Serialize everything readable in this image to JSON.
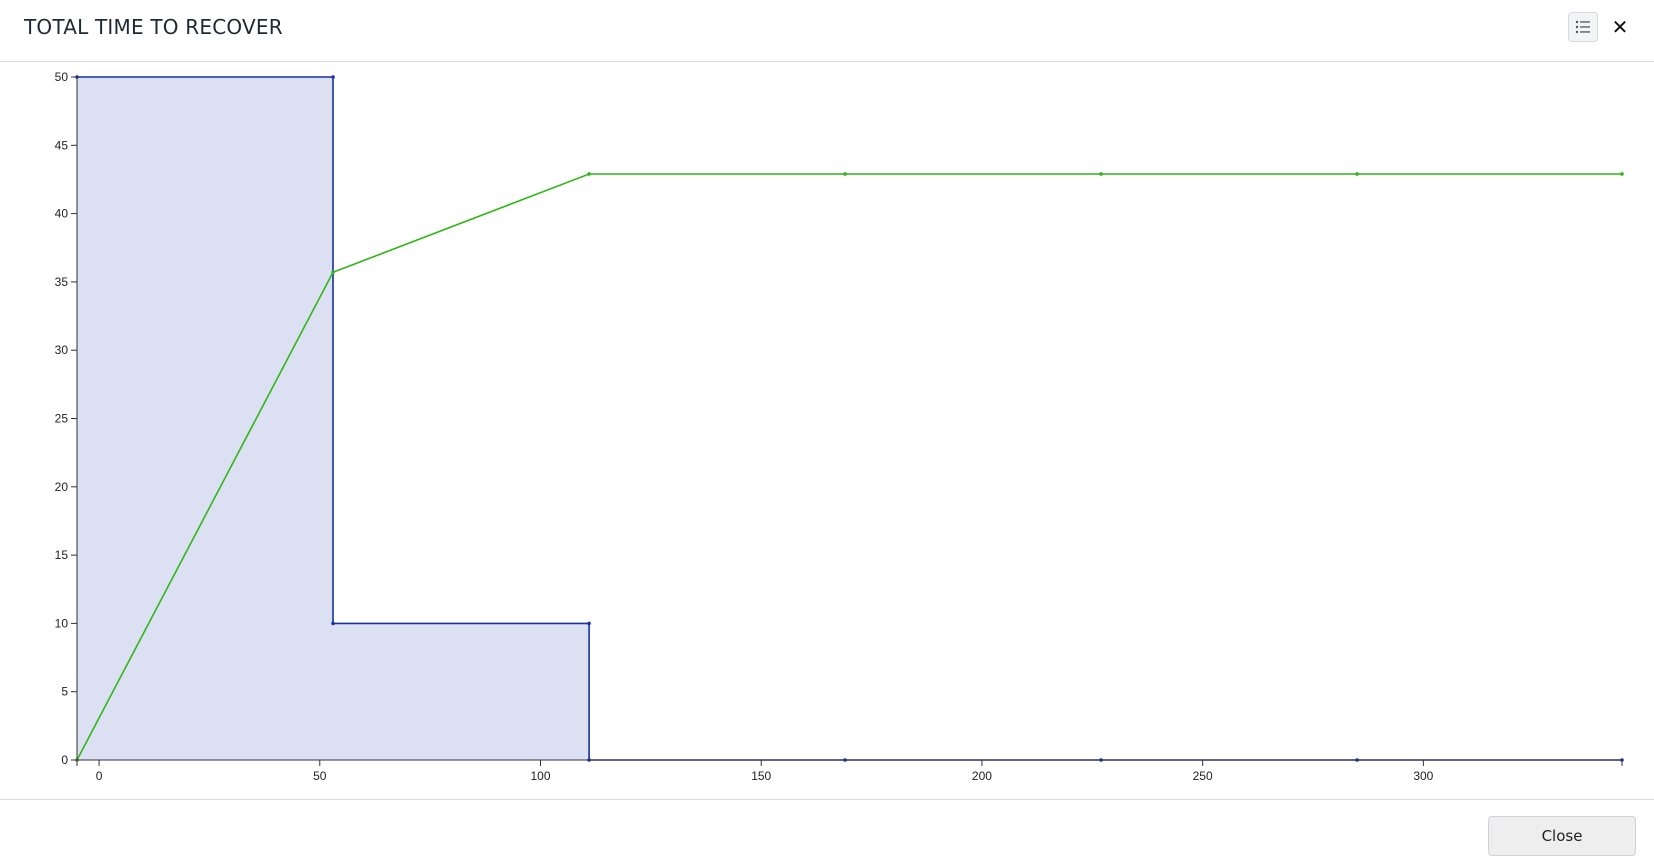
{
  "dialog": {
    "title": "TOTAL TIME TO RECOVER",
    "close_button_label": "Close",
    "close_icon_glyph": "✕"
  },
  "icons": {
    "list": "list-icon",
    "close": "close-icon"
  },
  "colors": {
    "blue_series": "#1a2fa8",
    "blue_fill": "#dbe1f2",
    "green_series": "#33b51a"
  },
  "chart_data": {
    "type": "area",
    "title": "",
    "xlabel": "",
    "ylabel": "",
    "xlim": [
      -5,
      345
    ],
    "ylim": [
      0,
      50
    ],
    "x_ticks": [
      0,
      50,
      100,
      150,
      200,
      250,
      300
    ],
    "y_ticks": [
      0,
      5,
      10,
      15,
      20,
      25,
      30,
      35,
      40,
      45,
      50
    ],
    "grid": false,
    "legend": "none",
    "series": [
      {
        "type": "step-area",
        "color": "#1a2fa8",
        "points": [
          [
            -5,
            50
          ],
          [
            53,
            50
          ],
          [
            53,
            10
          ],
          [
            111,
            10
          ],
          [
            111,
            0
          ],
          [
            169,
            0
          ],
          [
            227,
            0
          ],
          [
            285,
            0
          ],
          [
            345,
            0
          ]
        ]
      },
      {
        "type": "line",
        "color": "#33b51a",
        "points": [
          [
            -5,
            0
          ],
          [
            53,
            35.7
          ],
          [
            111,
            42.9
          ],
          [
            169,
            42.9
          ],
          [
            227,
            42.9
          ],
          [
            285,
            42.9
          ],
          [
            345,
            42.9
          ]
        ]
      }
    ]
  }
}
